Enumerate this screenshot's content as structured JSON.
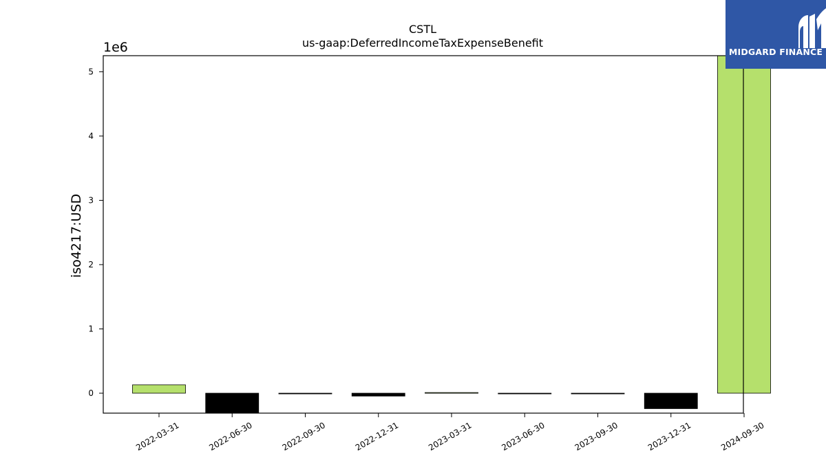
{
  "chart_data": {
    "type": "bar",
    "title": "CSTL",
    "subtitle": "us-gaap:DeferredIncomeTaxExpenseBenefit",
    "ylabel": "iso4217:USD",
    "xlabel": "",
    "offset_text": "1e6",
    "categories": [
      "2022-03-31",
      "2022-06-30",
      "2022-09-30",
      "2022-12-31",
      "2023-03-31",
      "2023-06-30",
      "2023-09-30",
      "2023-12-31",
      "2024-09-30"
    ],
    "values": [
      130000,
      -310000,
      -5000,
      -45000,
      10000,
      -5000,
      -5000,
      -240000,
      5250000
    ],
    "ylim": [
      -310000,
      5250000
    ],
    "yticks": [
      0,
      1,
      2,
      3,
      4,
      5
    ],
    "grid": false,
    "colors": {
      "positive": "#b5e06c",
      "negative": "#000000",
      "edge": "#000000"
    }
  },
  "logo": {
    "text": "MIDGARD FINANCE",
    "icon": "midgard-logo-icon"
  }
}
